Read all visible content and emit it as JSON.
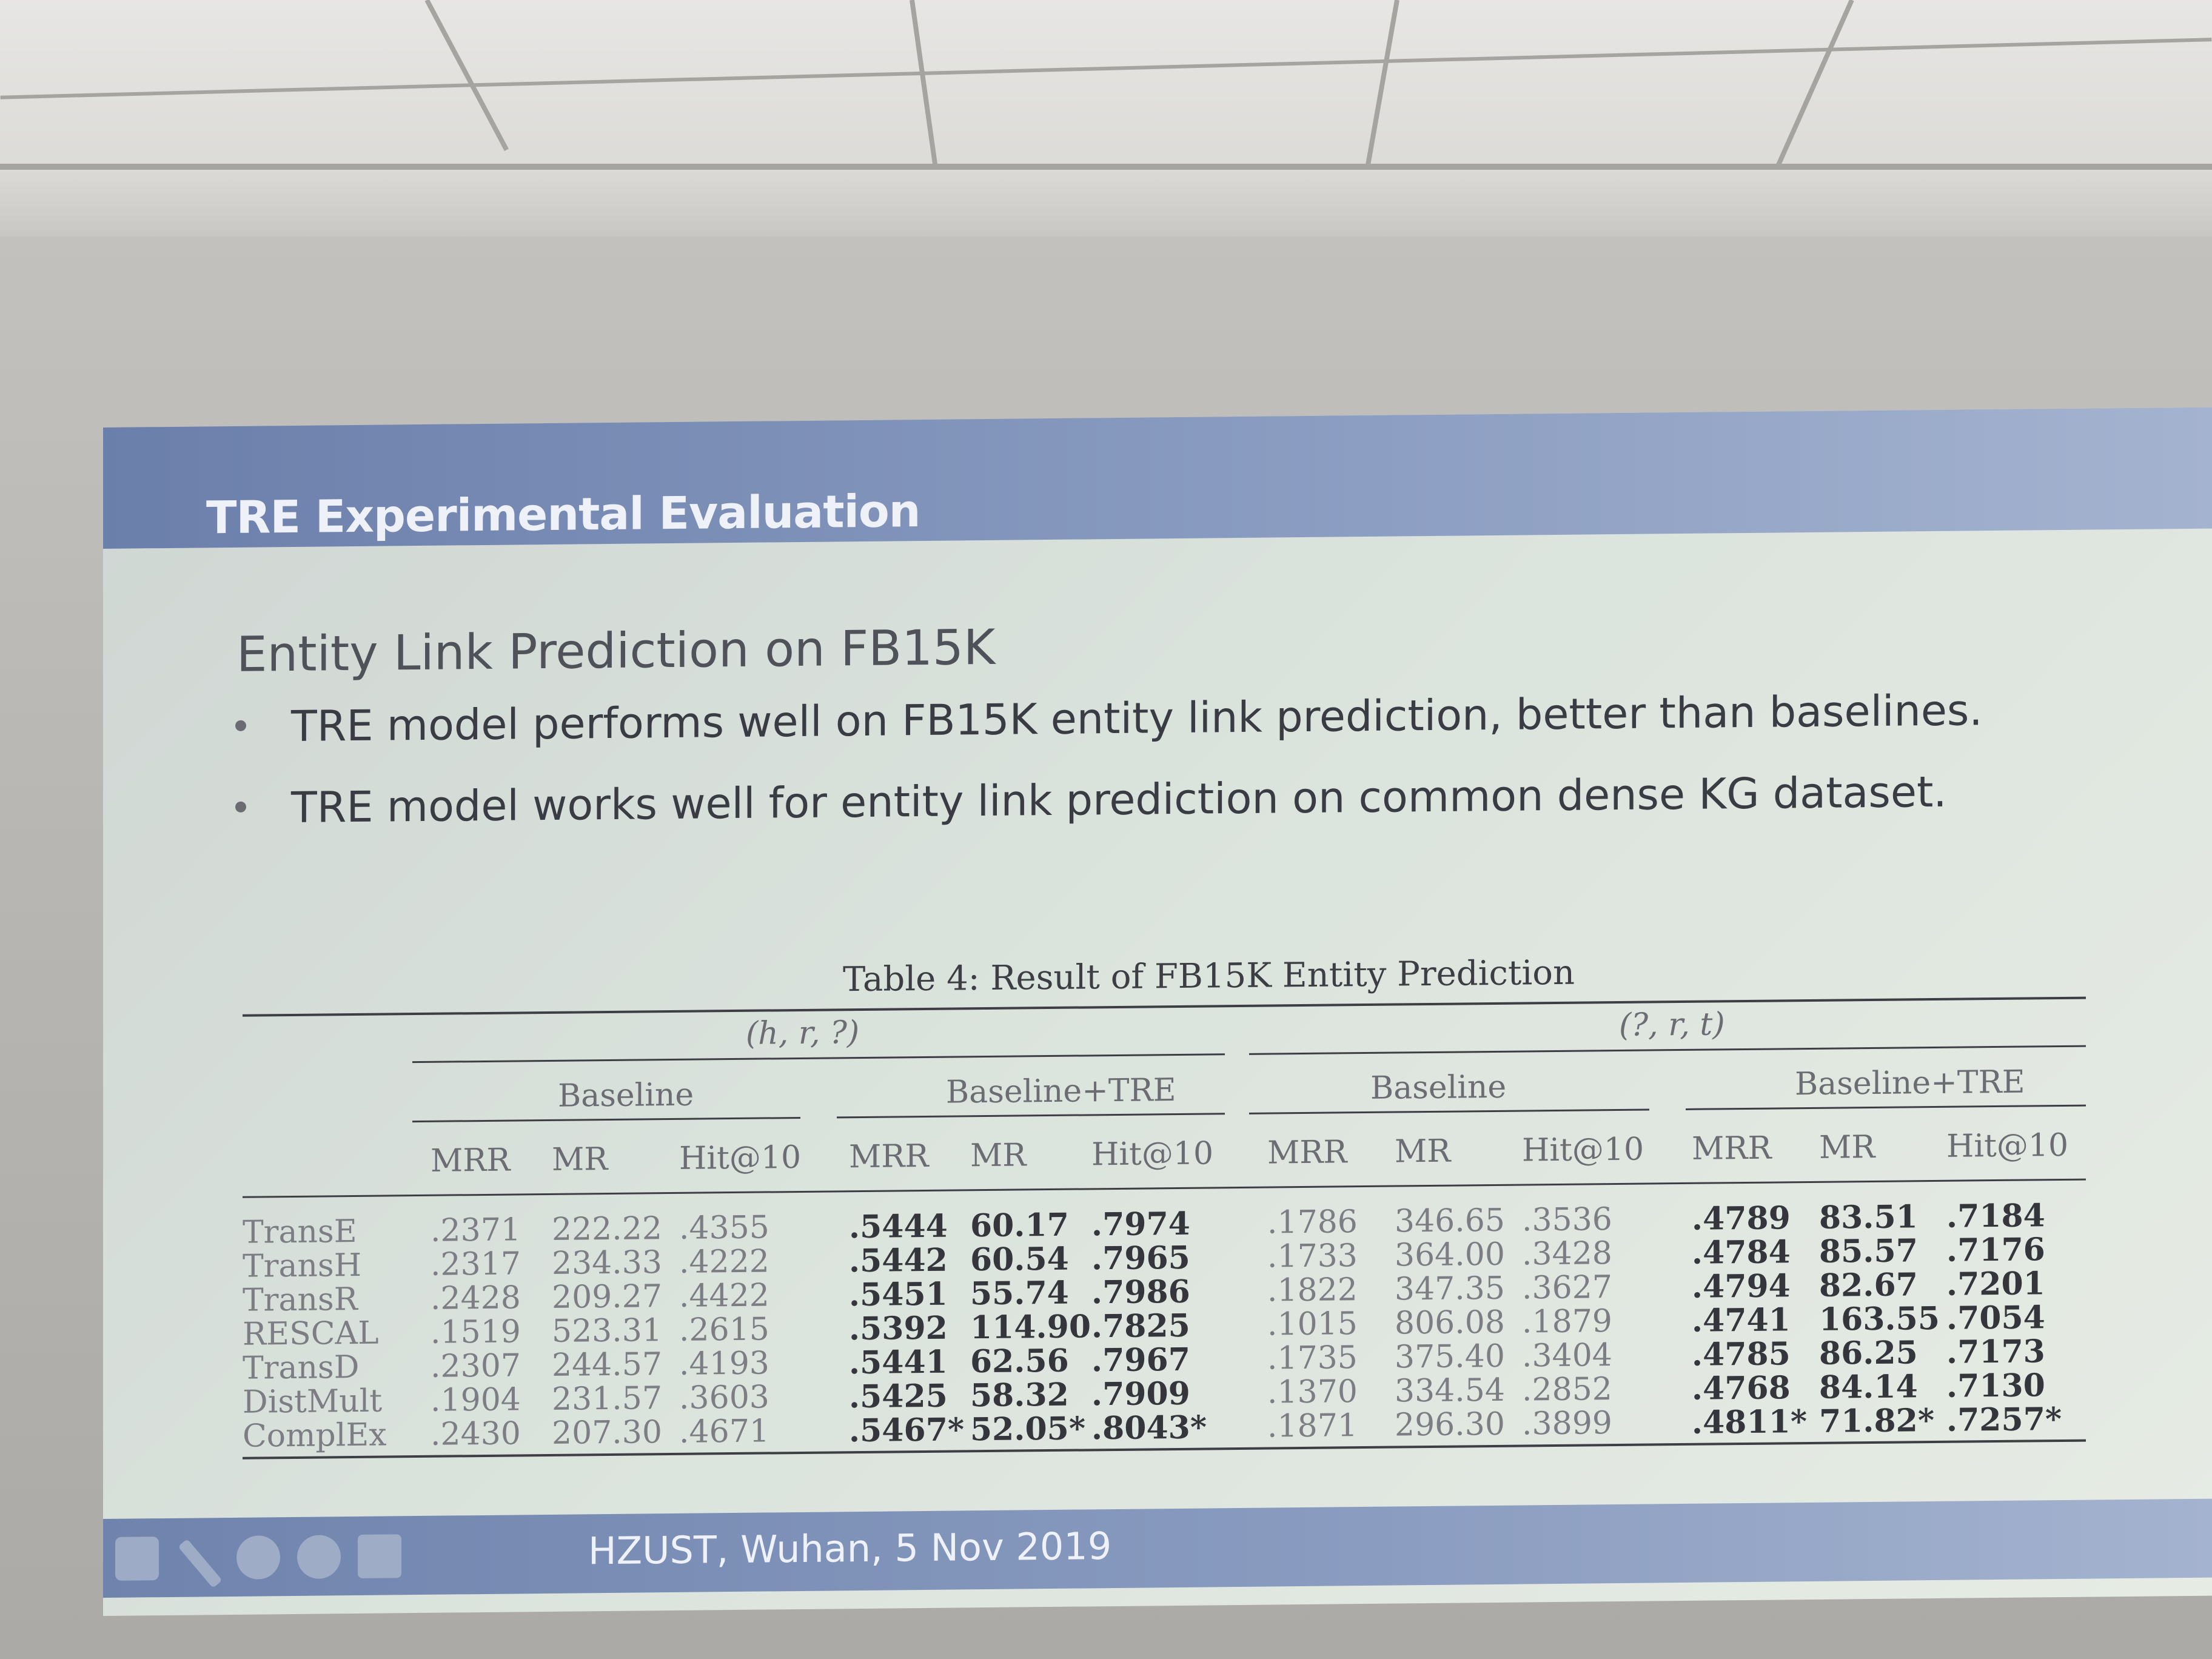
{
  "slide": {
    "header_title": "TRE Experimental Evaluation",
    "section_title": "Entity Link Prediction on FB15K",
    "bullets": [
      "TRE model performs well on FB15K entity link prediction, better than baselines.",
      "TRE model works well for entity link prediction on common dense KG dataset."
    ],
    "footer": "HZUST, Wuhan, 5 Nov 2019"
  },
  "table": {
    "caption": "Table 4: Result of FB15K Entity Prediction",
    "group_hr": "(h, r, ?)",
    "group_rt": "(?, r, t)",
    "sub_baseline": "Baseline",
    "sub_tre": "Baseline+TRE",
    "metrics": [
      "MRR",
      "MR",
      "Hit@10",
      "MRR",
      "MR",
      "Hit@10",
      "MRR",
      "MR",
      "Hit@10",
      "MRR",
      "MR",
      "Hit@10"
    ],
    "rows": [
      {
        "model": "TransE",
        "vals": [
          ".2371",
          "222.22",
          ".4355",
          ".5444",
          "60.17",
          ".7974",
          ".1786",
          "346.65",
          ".3536",
          ".4789",
          "83.51",
          ".7184"
        ]
      },
      {
        "model": "TransH",
        "vals": [
          ".2317",
          "234.33",
          ".4222",
          ".5442",
          "60.54",
          ".7965",
          ".1733",
          "364.00",
          ".3428",
          ".4784",
          "85.57",
          ".7176"
        ]
      },
      {
        "model": "TransR",
        "vals": [
          ".2428",
          "209.27",
          ".4422",
          ".5451",
          "55.74",
          ".7986",
          ".1822",
          "347.35",
          ".3627",
          ".4794",
          "82.67",
          ".7201"
        ]
      },
      {
        "model": "RESCAL",
        "vals": [
          ".1519",
          "523.31",
          ".2615",
          ".5392",
          "114.90",
          ".7825",
          ".1015",
          "806.08",
          ".1879",
          ".4741",
          "163.55",
          ".7054"
        ]
      },
      {
        "model": "TransD",
        "vals": [
          ".2307",
          "244.57",
          ".4193",
          ".5441",
          "62.56",
          ".7967",
          ".1735",
          "375.40",
          ".3404",
          ".4785",
          "86.25",
          ".7173"
        ]
      },
      {
        "model": "DistMult",
        "vals": [
          ".1904",
          "231.57",
          ".3603",
          ".5425",
          "58.32",
          ".7909",
          ".1370",
          "334.54",
          ".2852",
          ".4768",
          "84.14",
          ".7130"
        ]
      },
      {
        "model": "ComplEx",
        "vals": [
          ".2430",
          "207.30",
          ".4671",
          ".5467*",
          "52.05*",
          ".8043*",
          ".1871",
          "296.30",
          ".3899",
          ".4811*",
          "71.82*",
          ".7257*"
        ]
      }
    ]
  },
  "colors": {
    "header_bar": "#7387b0",
    "slide_bg": "#dbe3dd",
    "text": "#3a3c44"
  },
  "icons": [
    "nav-arrows-icon",
    "pen-icon",
    "circle-menu-icon",
    "more-icon",
    "forward-arrow-icon"
  ]
}
